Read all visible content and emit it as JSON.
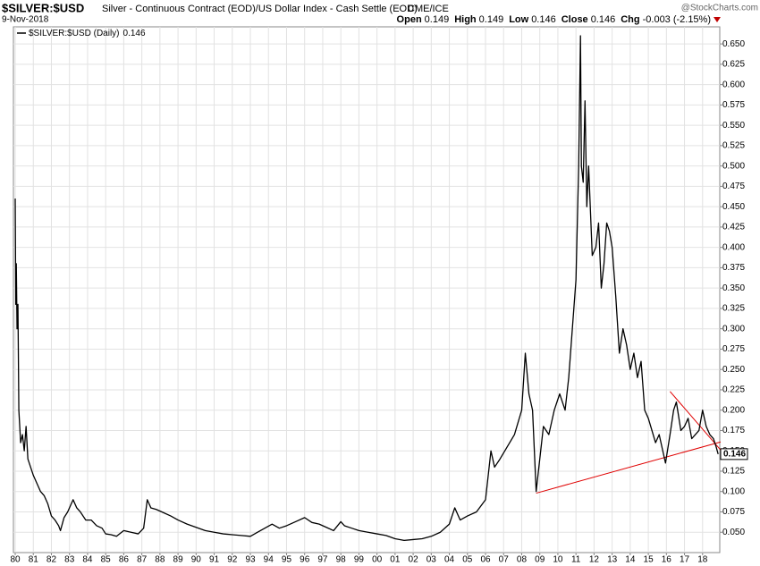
{
  "chart_data": {
    "type": "line",
    "title": "$SILVER:$USD",
    "subtitle": "Silver - Continuous Contract (EOD)/US Dollar Index - Cash Settle (EOD)",
    "exchange": "CME/ICE",
    "date": "9-Nov-2018",
    "watermark": "@StockCharts.com",
    "quote": [
      {
        "label": "Open",
        "value": 0.149
      },
      {
        "label": "High",
        "value": 0.149
      },
      {
        "label": "Low",
        "value": 0.146
      },
      {
        "label": "Close",
        "value": 0.146
      },
      {
        "label": "Chg",
        "value": -0.003,
        "pct": "(-2.15%)"
      }
    ],
    "last_value": 0.146,
    "grid": true,
    "xlim": [
      1979.9,
      2018.95
    ],
    "ylim": [
      0.025,
      0.671
    ],
    "xticks": [
      {
        "value": 1980,
        "label": "80"
      },
      {
        "value": 1981,
        "label": "81"
      },
      {
        "value": 1982,
        "label": "82"
      },
      {
        "value": 1983,
        "label": "83"
      },
      {
        "value": 1984,
        "label": "84"
      },
      {
        "value": 1985,
        "label": "85"
      },
      {
        "value": 1986,
        "label": "86"
      },
      {
        "value": 1987,
        "label": "87"
      },
      {
        "value": 1988,
        "label": "88"
      },
      {
        "value": 1989,
        "label": "89"
      },
      {
        "value": 1990,
        "label": "90"
      },
      {
        "value": 1991,
        "label": "91"
      },
      {
        "value": 1992,
        "label": "92"
      },
      {
        "value": 1993,
        "label": "93"
      },
      {
        "value": 1994,
        "label": "94"
      },
      {
        "value": 1995,
        "label": "95"
      },
      {
        "value": 1996,
        "label": "96"
      },
      {
        "value": 1997,
        "label": "97"
      },
      {
        "value": 1998,
        "label": "98"
      },
      {
        "value": 1999,
        "label": "99"
      },
      {
        "value": 2000,
        "label": "00"
      },
      {
        "value": 2001,
        "label": "01"
      },
      {
        "value": 2002,
        "label": "02"
      },
      {
        "value": 2003,
        "label": "03"
      },
      {
        "value": 2004,
        "label": "04"
      },
      {
        "value": 2005,
        "label": "05"
      },
      {
        "value": 2006,
        "label": "06"
      },
      {
        "value": 2007,
        "label": "07"
      },
      {
        "value": 2008,
        "label": "08"
      },
      {
        "value": 2009,
        "label": "09"
      },
      {
        "value": 2010,
        "label": "10"
      },
      {
        "value": 2011,
        "label": "11"
      },
      {
        "value": 2012,
        "label": "12"
      },
      {
        "value": 2013,
        "label": "13"
      },
      {
        "value": 2014,
        "label": "14"
      },
      {
        "value": 2015,
        "label": "15"
      },
      {
        "value": 2016,
        "label": "16"
      },
      {
        "value": 2017,
        "label": "17"
      },
      {
        "value": 2018,
        "label": "18"
      }
    ],
    "yticks": [
      {
        "value": 0.05,
        "label": "0.050"
      },
      0.075,
      {
        "value": 0.1,
        "label": "0.100"
      },
      0.125,
      {
        "value": 0.15,
        "label": "0.150"
      },
      0.175,
      {
        "value": 0.2,
        "label": "0.200"
      },
      0.225,
      {
        "value": 0.25,
        "label": "0.250"
      },
      0.275,
      {
        "value": 0.3,
        "label": "0.300"
      },
      0.325,
      {
        "value": 0.35,
        "label": "0.350"
      },
      0.375,
      {
        "value": 0.4,
        "label": "0.400"
      },
      0.425,
      {
        "value": 0.45,
        "label": "0.450"
      },
      0.475,
      {
        "value": 0.5,
        "label": "0.500"
      },
      0.525,
      {
        "value": 0.55,
        "label": "0.550"
      },
      0.575,
      {
        "value": 0.6,
        "label": "0.600"
      },
      0.625,
      {
        "value": 0.65,
        "label": "0.650"
      }
    ],
    "series": [
      {
        "name": "$SILVER:$USD (Daily)",
        "color": "#000000",
        "x": [
          1980.0,
          1980.03,
          1980.06,
          1980.1,
          1980.15,
          1980.2,
          1980.3,
          1980.4,
          1980.5,
          1980.6,
          1980.7,
          1980.85,
          1981.0,
          1981.2,
          1981.4,
          1981.6,
          1981.8,
          1982.0,
          1982.2,
          1982.4,
          1982.5,
          1982.7,
          1982.9,
          1983.1,
          1983.2,
          1983.4,
          1983.6,
          1983.9,
          1984.2,
          1984.5,
          1984.8,
          1985.0,
          1985.3,
          1985.6,
          1986.0,
          1986.4,
          1986.8,
          1987.1,
          1987.3,
          1987.5,
          1987.8,
          1988.2,
          1988.6,
          1989.0,
          1989.5,
          1990.0,
          1990.5,
          1991.0,
          1991.5,
          1992.0,
          1992.5,
          1993.0,
          1993.4,
          1993.8,
          1994.2,
          1994.6,
          1995.0,
          1995.5,
          1996.0,
          1996.4,
          1996.8,
          1997.2,
          1997.6,
          1998.0,
          1998.2,
          1998.6,
          1999.0,
          1999.5,
          2000.0,
          2000.5,
          2001.0,
          2001.5,
          2002.0,
          2002.5,
          2003.0,
          2003.5,
          2004.0,
          2004.3,
          2004.6,
          2005.0,
          2005.5,
          2006.0,
          2006.3,
          2006.5,
          2006.8,
          2007.2,
          2007.6,
          2008.0,
          2008.2,
          2008.4,
          2008.6,
          2008.8,
          2009.0,
          2009.2,
          2009.5,
          2009.8,
          2010.1,
          2010.4,
          2010.6,
          2010.8,
          2011.0,
          2011.15,
          2011.25,
          2011.3,
          2011.4,
          2011.5,
          2011.6,
          2011.7,
          2011.9,
          2012.1,
          2012.25,
          2012.4,
          2012.55,
          2012.7,
          2012.85,
          2013.0,
          2013.2,
          2013.4,
          2013.6,
          2013.8,
          2014.0,
          2014.2,
          2014.4,
          2014.6,
          2014.8,
          2015.0,
          2015.2,
          2015.4,
          2015.6,
          2015.8,
          2015.95,
          2016.2,
          2016.4,
          2016.55,
          2016.8,
          2017.0,
          2017.2,
          2017.4,
          2017.6,
          2017.8,
          2018.0,
          2018.2,
          2018.4,
          2018.6,
          2018.75,
          2018.86
        ],
        "values": [
          0.46,
          0.33,
          0.38,
          0.3,
          0.33,
          0.2,
          0.16,
          0.17,
          0.15,
          0.18,
          0.14,
          0.13,
          0.12,
          0.11,
          0.1,
          0.095,
          0.085,
          0.07,
          0.065,
          0.058,
          0.052,
          0.068,
          0.075,
          0.085,
          0.09,
          0.08,
          0.075,
          0.065,
          0.065,
          0.058,
          0.055,
          0.048,
          0.047,
          0.045,
          0.052,
          0.05,
          0.048,
          0.055,
          0.09,
          0.08,
          0.078,
          0.074,
          0.07,
          0.065,
          0.06,
          0.056,
          0.052,
          0.05,
          0.048,
          0.047,
          0.046,
          0.045,
          0.05,
          0.055,
          0.06,
          0.055,
          0.058,
          0.063,
          0.068,
          0.062,
          0.06,
          0.056,
          0.052,
          0.063,
          0.058,
          0.055,
          0.052,
          0.05,
          0.048,
          0.046,
          0.042,
          0.04,
          0.041,
          0.042,
          0.045,
          0.05,
          0.06,
          0.08,
          0.065,
          0.07,
          0.075,
          0.09,
          0.15,
          0.13,
          0.14,
          0.155,
          0.17,
          0.2,
          0.27,
          0.22,
          0.2,
          0.1,
          0.14,
          0.18,
          0.17,
          0.2,
          0.22,
          0.2,
          0.24,
          0.3,
          0.36,
          0.5,
          0.66,
          0.5,
          0.48,
          0.58,
          0.45,
          0.5,
          0.39,
          0.4,
          0.43,
          0.35,
          0.38,
          0.43,
          0.42,
          0.4,
          0.34,
          0.27,
          0.3,
          0.28,
          0.25,
          0.27,
          0.24,
          0.26,
          0.2,
          0.19,
          0.175,
          0.16,
          0.17,
          0.15,
          0.135,
          0.17,
          0.2,
          0.21,
          0.175,
          0.18,
          0.19,
          0.165,
          0.17,
          0.175,
          0.2,
          0.18,
          0.17,
          0.165,
          0.155,
          0.146
        ]
      }
    ],
    "trendlines": [
      {
        "color": "#e00000",
        "x": [
          2008.8,
          2019.0
        ],
        "y": [
          0.098,
          0.161
        ]
      },
      {
        "color": "#e00000",
        "x": [
          2016.2,
          2019.0
        ],
        "y": [
          0.223,
          0.151
        ]
      }
    ]
  }
}
